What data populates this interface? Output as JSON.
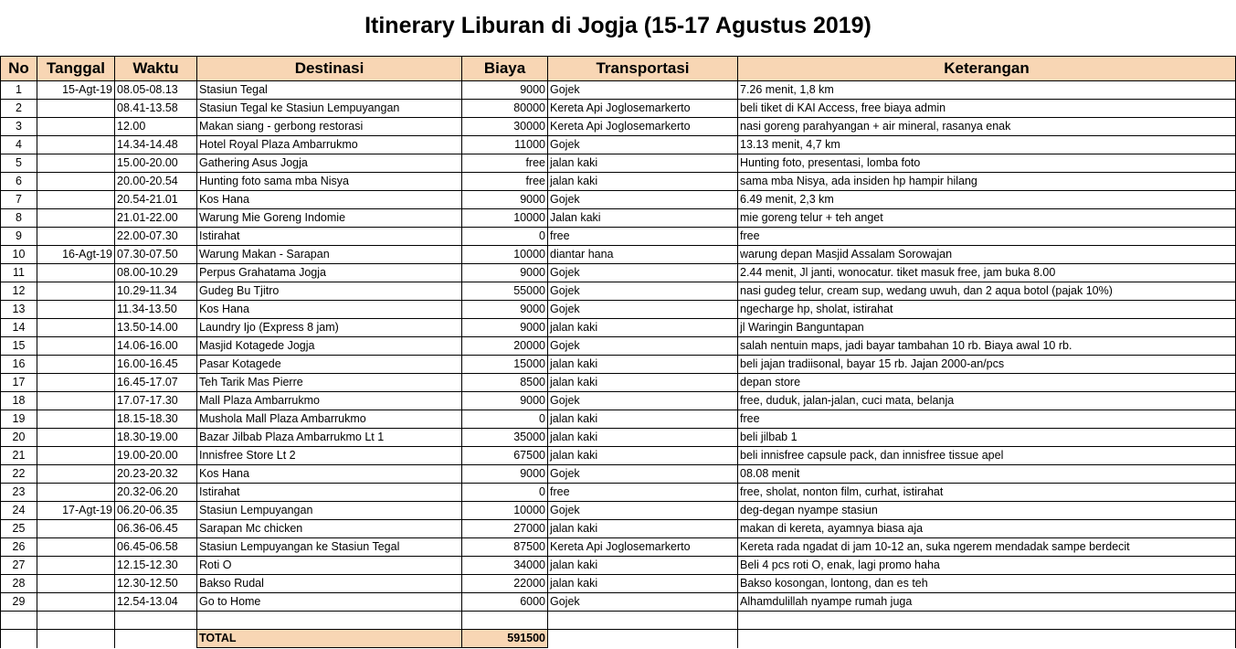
{
  "title": "Itinerary Liburan di Jogja (15-17 Agustus 2019)",
  "columns": [
    "No",
    "Tanggal",
    "Waktu",
    "Destinasi",
    "Biaya",
    "Transportasi",
    "Keterangan"
  ],
  "rows": [
    {
      "no": "1",
      "tanggal": "15-Agt-19",
      "waktu": "08.05-08.13",
      "destinasi": "Stasiun Tegal",
      "biaya": "9000",
      "transportasi": "Gojek",
      "keterangan": "7.26 menit, 1,8 km"
    },
    {
      "no": "2",
      "tanggal": "",
      "waktu": "08.41-13.58",
      "destinasi": "Stasiun Tegal ke Stasiun Lempuyangan",
      "biaya": "80000",
      "transportasi": "Kereta Api Joglosemarkerto",
      "keterangan": "beli tiket di KAI Access, free biaya admin"
    },
    {
      "no": "3",
      "tanggal": "",
      "waktu": "12.00",
      "destinasi": "Makan siang - gerbong restorasi",
      "biaya": "30000",
      "transportasi": "Kereta Api Joglosemarkerto",
      "keterangan": "nasi goreng parahyangan + air mineral, rasanya enak"
    },
    {
      "no": "4",
      "tanggal": "",
      "waktu": "14.34-14.48",
      "destinasi": "Hotel Royal Plaza Ambarrukmo",
      "biaya": "11000",
      "transportasi": "Gojek",
      "keterangan": "13.13 menit, 4,7 km"
    },
    {
      "no": "5",
      "tanggal": "",
      "waktu": "15.00-20.00",
      "destinasi": "Gathering Asus Jogja",
      "biaya": "free",
      "transportasi": "jalan kaki",
      "keterangan": "Hunting foto, presentasi, lomba foto"
    },
    {
      "no": "6",
      "tanggal": "",
      "waktu": "20.00-20.54",
      "destinasi": "Hunting foto sama mba Nisya",
      "biaya": "free",
      "transportasi": "jalan kaki",
      "keterangan": "sama mba Nisya, ada insiden hp hampir hilang"
    },
    {
      "no": "7",
      "tanggal": "",
      "waktu": "20.54-21.01",
      "destinasi": "Kos Hana",
      "biaya": "9000",
      "transportasi": "Gojek",
      "keterangan": "6.49 menit, 2,3 km"
    },
    {
      "no": "8",
      "tanggal": "",
      "waktu": "21.01-22.00",
      "destinasi": "Warung Mie Goreng Indomie",
      "biaya": "10000",
      "transportasi": "Jalan kaki",
      "keterangan": "mie goreng telur + teh anget"
    },
    {
      "no": "9",
      "tanggal": "",
      "waktu": "22.00-07.30",
      "destinasi": "Istirahat",
      "biaya": "0",
      "transportasi": "free",
      "keterangan": "free"
    },
    {
      "no": "10",
      "tanggal": "16-Agt-19",
      "waktu": "07.30-07.50",
      "destinasi": "Warung Makan - Sarapan",
      "biaya": "10000",
      "transportasi": "diantar hana",
      "keterangan": "warung depan Masjid Assalam Sorowajan"
    },
    {
      "no": "11",
      "tanggal": "",
      "waktu": "08.00-10.29",
      "destinasi": "Perpus Grahatama Jogja",
      "biaya": "9000",
      "transportasi": "Gojek",
      "keterangan": "2.44 menit, Jl janti, wonocatur. tiket masuk free, jam buka 8.00"
    },
    {
      "no": "12",
      "tanggal": "",
      "waktu": "10.29-11.34",
      "destinasi": "Gudeg Bu Tjitro",
      "biaya": "55000",
      "transportasi": "Gojek",
      "keterangan": "nasi gudeg telur, cream sup, wedang uwuh, dan 2 aqua botol (pajak 10%)"
    },
    {
      "no": "13",
      "tanggal": "",
      "waktu": "11.34-13.50",
      "destinasi": "Kos Hana",
      "biaya": "9000",
      "transportasi": "Gojek",
      "keterangan": "ngecharge hp, sholat, istirahat"
    },
    {
      "no": "14",
      "tanggal": "",
      "waktu": "13.50-14.00",
      "destinasi": "Laundry Ijo (Express 8 jam)",
      "biaya": "9000",
      "transportasi": "jalan kaki",
      "keterangan": "jl Waringin Banguntapan"
    },
    {
      "no": "15",
      "tanggal": "",
      "waktu": "14.06-16.00",
      "destinasi": "Masjid Kotagede Jogja",
      "biaya": "20000",
      "transportasi": "Gojek",
      "keterangan": "salah nentuin maps, jadi bayar tambahan 10 rb. Biaya awal 10 rb."
    },
    {
      "no": "16",
      "tanggal": "",
      "waktu": "16.00-16.45",
      "destinasi": "Pasar Kotagede",
      "biaya": "15000",
      "transportasi": "jalan kaki",
      "keterangan": "beli jajan tradiisonal, bayar 15 rb. Jajan 2000-an/pcs"
    },
    {
      "no": "17",
      "tanggal": "",
      "waktu": "16.45-17.07",
      "destinasi": "Teh Tarik Mas Pierre",
      "biaya": "8500",
      "transportasi": "jalan kaki",
      "keterangan": "depan store"
    },
    {
      "no": "18",
      "tanggal": "",
      "waktu": "17.07-17.30",
      "destinasi": "Mall Plaza Ambarrukmo",
      "biaya": "9000",
      "transportasi": "Gojek",
      "keterangan": "free, duduk, jalan-jalan, cuci mata, belanja"
    },
    {
      "no": "19",
      "tanggal": "",
      "waktu": "18.15-18.30",
      "destinasi": "Mushola Mall Plaza Ambarrukmo",
      "biaya": "0",
      "transportasi": "jalan kaki",
      "keterangan": "free"
    },
    {
      "no": "20",
      "tanggal": "",
      "waktu": "18.30-19.00",
      "destinasi": "Bazar Jilbab Plaza Ambarrukmo Lt 1",
      "biaya": "35000",
      "transportasi": "jalan kaki",
      "keterangan": "beli jilbab 1"
    },
    {
      "no": "21",
      "tanggal": "",
      "waktu": "19.00-20.00",
      "destinasi": "Innisfree Store Lt 2",
      "biaya": "67500",
      "transportasi": "jalan kaki",
      "keterangan": "beli innisfree capsule pack, dan innisfree tissue apel"
    },
    {
      "no": "22",
      "tanggal": "",
      "waktu": "20.23-20.32",
      "destinasi": "Kos Hana",
      "biaya": "9000",
      "transportasi": "Gojek",
      "keterangan": "08.08 menit"
    },
    {
      "no": "23",
      "tanggal": "",
      "waktu": "20.32-06.20",
      "destinasi": "Istirahat",
      "biaya": "0",
      "transportasi": "free",
      "keterangan": "free, sholat, nonton film, curhat, istirahat"
    },
    {
      "no": "24",
      "tanggal": "17-Agt-19",
      "waktu": "06.20-06.35",
      "destinasi": "Stasiun Lempuyangan",
      "biaya": "10000",
      "transportasi": "Gojek",
      "keterangan": "deg-degan nyampe stasiun"
    },
    {
      "no": "25",
      "tanggal": "",
      "waktu": "06.36-06.45",
      "destinasi": "Sarapan Mc chicken",
      "biaya": "27000",
      "transportasi": "jalan kaki",
      "keterangan": "makan di kereta, ayamnya biasa aja"
    },
    {
      "no": "26",
      "tanggal": "",
      "waktu": "06.45-06.58",
      "destinasi": "Stasiun Lempuyangan ke Stasiun Tegal",
      "biaya": "87500",
      "transportasi": "Kereta Api Joglosemarkerto",
      "keterangan": "Kereta rada ngadat di jam 10-12 an, suka ngerem mendadak sampe berdecit"
    },
    {
      "no": "27",
      "tanggal": "",
      "waktu": "12.15-12.30",
      "destinasi": "Roti O",
      "biaya": "34000",
      "transportasi": "jalan kaki",
      "keterangan": "Beli 4 pcs roti O, enak, lagi promo haha"
    },
    {
      "no": "28",
      "tanggal": "",
      "waktu": "12.30-12.50",
      "destinasi": "Bakso Rudal",
      "biaya": "22000",
      "transportasi": "jalan kaki",
      "keterangan": "Bakso kosongan, lontong, dan es teh"
    },
    {
      "no": "29",
      "tanggal": "",
      "waktu": "12.54-13.04",
      "destinasi": "Go to Home",
      "biaya": "6000",
      "transportasi": "Gojek",
      "keterangan": "Alhamdulillah nyampe rumah juga"
    }
  ],
  "total": {
    "label": "TOTAL",
    "value": "591500"
  },
  "colors": {
    "header_bg": "#f8d6b4",
    "border": "#000000"
  }
}
